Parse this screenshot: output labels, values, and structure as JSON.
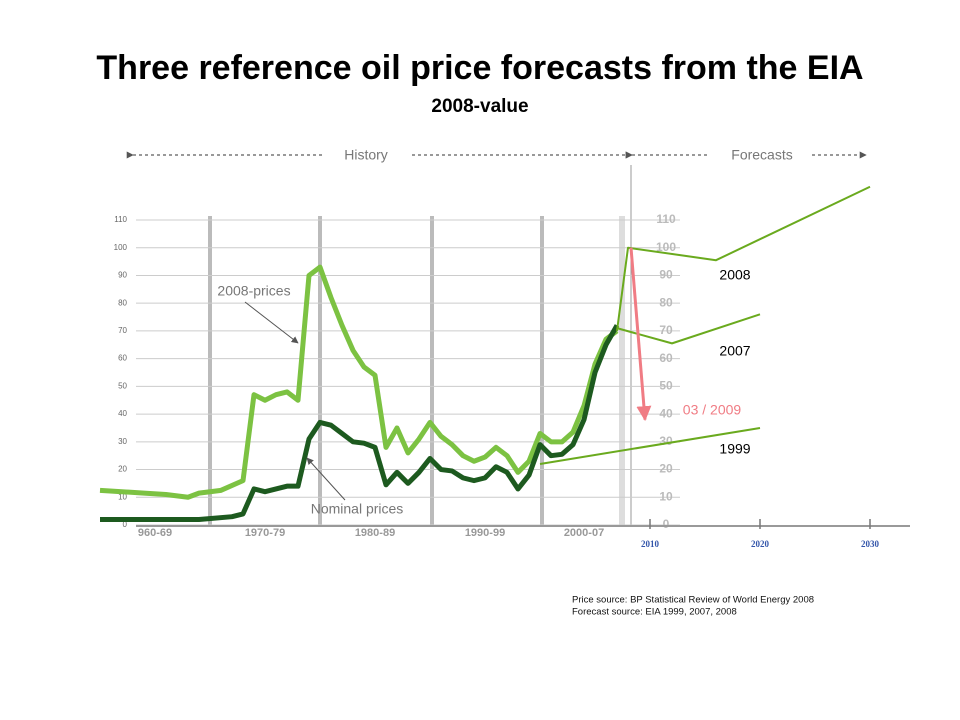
{
  "chart_data": {
    "type": "line",
    "title": "Three reference oil price forecasts from the EIA",
    "subtitle": "2008-value",
    "periods": [
      "History",
      "Forecasts"
    ],
    "xlim": [
      1960,
      2034
    ],
    "ylim": [
      0,
      110
    ],
    "yticks": [
      0,
      10,
      20,
      30,
      40,
      50,
      60,
      70,
      80,
      90,
      100,
      110
    ],
    "xticks": [
      {
        "value": 1965,
        "label": "960-69"
      },
      {
        "value": 1975,
        "label": "1970-79"
      },
      {
        "value": 1985,
        "label": "1980-89"
      },
      {
        "value": 1995,
        "label": "1990-99"
      },
      {
        "value": 2004,
        "label": "2000-07"
      },
      2010,
      2020,
      2030
    ],
    "grid": true,
    "series": [
      {
        "name": "2008-prices",
        "color": "#7cc242",
        "width": 5,
        "x": [
          1960,
          1962,
          1964,
          1966,
          1968,
          1969,
          1971,
          1973,
          1974,
          1975,
          1976,
          1977,
          1978,
          1979,
          1980,
          1981,
          1982,
          1983,
          1984,
          1985,
          1986,
          1987,
          1988,
          1989,
          1990,
          1991,
          1992,
          1993,
          1994,
          1995,
          1996,
          1997,
          1998,
          1999,
          2000,
          2001,
          2002,
          2003,
          2004,
          2005,
          2006,
          2007
        ],
        "values": [
          12.5,
          12,
          11.5,
          11,
          10,
          11.5,
          12.5,
          16,
          47,
          45,
          47,
          48,
          45,
          90,
          93,
          82,
          72,
          63,
          57,
          54,
          28,
          35,
          26,
          31,
          37,
          32,
          29,
          25,
          23,
          24.5,
          28,
          25,
          19,
          23,
          33,
          30,
          30,
          33.5,
          43,
          58,
          67,
          70
        ]
      },
      {
        "name": "Nominal prices",
        "color": "#1d5a1f",
        "width": 5,
        "x": [
          1960,
          1965,
          1969,
          1972,
          1973,
          1974,
          1975,
          1976,
          1977,
          1978,
          1979,
          1980,
          1981,
          1982,
          1983,
          1984,
          1985,
          1986,
          1987,
          1988,
          1989,
          1990,
          1991,
          1992,
          1993,
          1994,
          1995,
          1996,
          1997,
          1998,
          1999,
          2000,
          2001,
          2002,
          2003,
          2004,
          2005,
          2006,
          2007
        ],
        "values": [
          2,
          2,
          2,
          3,
          4,
          13,
          12,
          13,
          14,
          14,
          31,
          37,
          36,
          33,
          30,
          29.5,
          28,
          14.5,
          19,
          15,
          19,
          24,
          20,
          19.5,
          17,
          16,
          17,
          21,
          19,
          13,
          18,
          29,
          25,
          25.5,
          29,
          38,
          55,
          65,
          72
        ]
      },
      {
        "name": "2008",
        "color": "#6aaa1e",
        "width": 2,
        "x": [
          2007,
          2008,
          2016,
          2030
        ],
        "values": [
          70,
          100,
          95.5,
          122
        ]
      },
      {
        "name": "2007",
        "color": "#6aaa1e",
        "width": 2,
        "x": [
          2007,
          2012,
          2020
        ],
        "values": [
          71,
          65.5,
          76
        ]
      },
      {
        "name": "1999",
        "color": "#6aaa1e",
        "width": 2,
        "x": [
          2000,
          2020
        ],
        "values": [
          22,
          35
        ]
      }
    ],
    "drop": {
      "label": "03 / 2009",
      "color": "#f07c84",
      "values": [
        100,
        38
      ]
    },
    "sources": [
      "Price source:      BP Statistical Review of World Energy 2008",
      "Forecast source: EIA 1999, 2007, 2008"
    ]
  }
}
